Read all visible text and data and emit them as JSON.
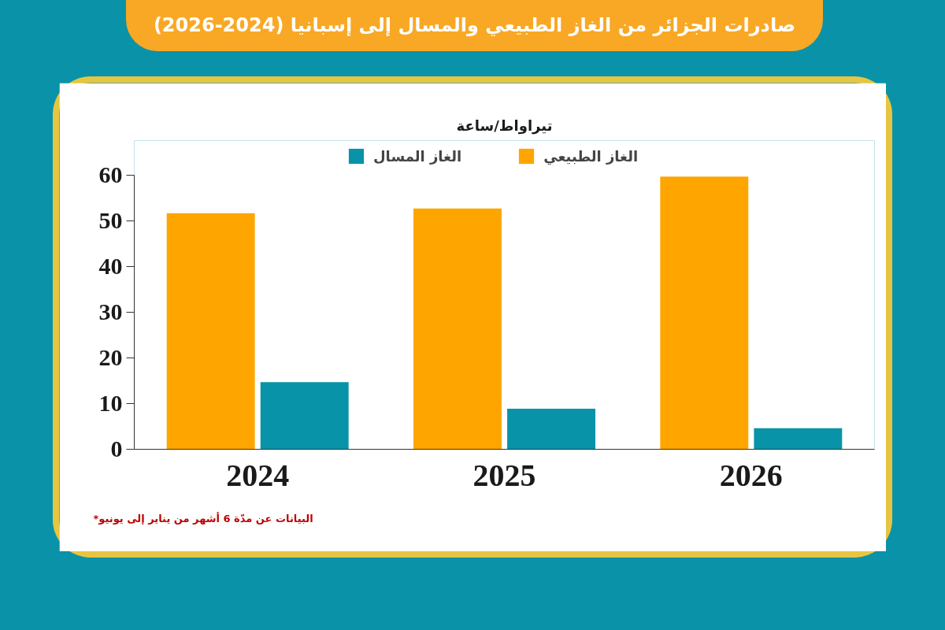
{
  "chart_data": {
    "type": "bar",
    "title": "صادرات الجزائر من الغاز الطبيعي والمسال إلى إسبانيا (2024-2026)",
    "ylabel": "تيراواط/ساعة",
    "categories": [
      "2024",
      "2025",
      "2026"
    ],
    "series": [
      {
        "name": "الغاز الطبيعي",
        "color": "#fea500",
        "values": [
          51.7,
          52.7,
          59.7
        ]
      },
      {
        "name": "الغاز المسال",
        "color": "#0993a8",
        "values": [
          14.7,
          8.9,
          4.6
        ]
      }
    ],
    "ylim": [
      0,
      60
    ],
    "yticks": [
      0,
      10,
      20,
      30,
      40,
      50,
      60
    ],
    "legend": "top",
    "annotations": [
      "*البيانات عن مدّة 6 أشهر من يناير إلى يونيو"
    ]
  }
}
